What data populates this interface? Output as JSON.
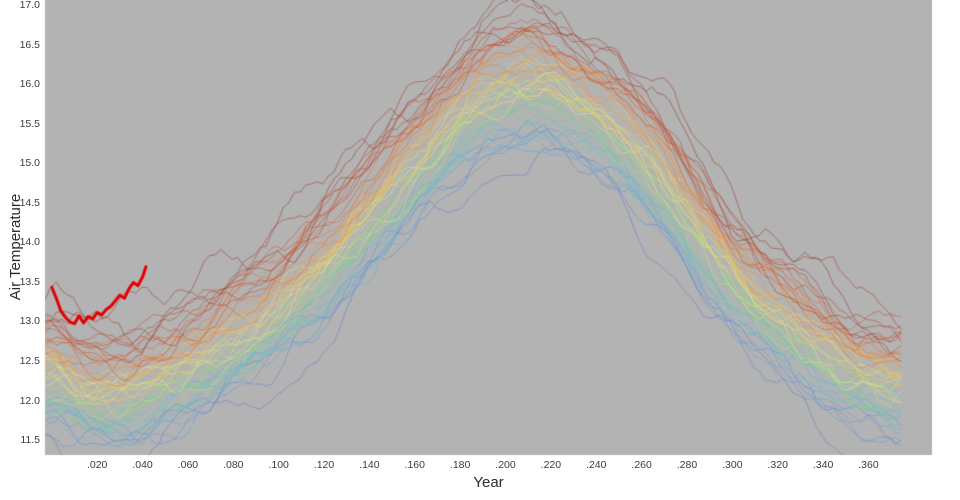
{
  "chart_data": {
    "type": "line",
    "title": "",
    "xlabel": "Year",
    "ylabel": "Air Temperature",
    "plot_background": "#b3b3b3",
    "tick_color": "#3c3c3c",
    "grid": false,
    "legend": "none",
    "xlim": [
      -0.003,
      0.388
    ],
    "ylim": [
      11.3,
      17.05
    ],
    "x_ticks": [
      {
        "v": 0.02,
        "label": ".020"
      },
      {
        "v": 0.04,
        "label": ".040"
      },
      {
        "v": 0.06,
        "label": ".060"
      },
      {
        "v": 0.08,
        "label": ".080"
      },
      {
        "v": 0.1,
        "label": ".100"
      },
      {
        "v": 0.12,
        "label": ".120"
      },
      {
        "v": 0.14,
        "label": ".140"
      },
      {
        "v": 0.16,
        "label": ".160"
      },
      {
        "v": 0.18,
        "label": ".180"
      },
      {
        "v": 0.2,
        "label": ".200"
      },
      {
        "v": 0.22,
        "label": ".220"
      },
      {
        "v": 0.24,
        "label": ".240"
      },
      {
        "v": 0.26,
        "label": ".260"
      },
      {
        "v": 0.28,
        "label": ".280"
      },
      {
        "v": 0.3,
        "label": ".300"
      },
      {
        "v": 0.32,
        "label": ".320"
      },
      {
        "v": 0.34,
        "label": ".340"
      },
      {
        "v": 0.36,
        "label": ".360"
      }
    ],
    "y_ticks": [
      {
        "v": 11.5,
        "label": "11.5"
      },
      {
        "v": 12.0,
        "label": "12.0"
      },
      {
        "v": 12.5,
        "label": "12.5"
      },
      {
        "v": 13.0,
        "label": "13.0"
      },
      {
        "v": 13.5,
        "label": "13.5"
      },
      {
        "v": 14.0,
        "label": "14.0"
      },
      {
        "v": 14.5,
        "label": "14.5"
      },
      {
        "v": 15.0,
        "label": "15.0"
      },
      {
        "v": 15.5,
        "label": "15.5"
      },
      {
        "v": 16.0,
        "label": "16.0"
      },
      {
        "v": 16.5,
        "label": "16.5"
      },
      {
        "v": 17.0,
        "label": "17.0"
      }
    ],
    "base_curve": {
      "x": [
        0.0,
        0.01,
        0.02,
        0.03,
        0.04,
        0.06,
        0.08,
        0.1,
        0.12,
        0.14,
        0.16,
        0.18,
        0.2,
        0.215,
        0.23,
        0.25,
        0.27,
        0.29,
        0.31,
        0.33,
        0.35,
        0.365,
        0.376
      ],
      "y": [
        12.2,
        12.05,
        11.98,
        12.0,
        12.08,
        12.3,
        12.65,
        13.1,
        13.6,
        14.2,
        14.85,
        15.45,
        15.8,
        15.85,
        15.7,
        15.25,
        14.6,
        13.85,
        13.2,
        12.7,
        12.3,
        12.15,
        12.1
      ]
    },
    "ensemble": {
      "count": 55,
      "seed": 7,
      "x_start": -0.003,
      "x_end": 0.376,
      "offset_range": [
        -0.55,
        0.8
      ],
      "noise_smooth": 0.16,
      "noise_jitter": 0.12,
      "alpha": 0.62,
      "line_width": 0.9,
      "palette": [
        "#5b7fd0",
        "#6aa8dd",
        "#62c6c9",
        "#7fcf8a",
        "#b4dc7e",
        "#ece97e",
        "#f4c95c",
        "#f29a45",
        "#e06a3b",
        "#c04a30",
        "#93382a"
      ]
    },
    "observed": {
      "color": "#e50000",
      "line_width": 3,
      "points": [
        [
          0.0,
          13.42
        ],
        [
          0.002,
          13.28
        ],
        [
          0.004,
          13.12
        ],
        [
          0.006,
          13.04
        ],
        [
          0.008,
          12.98
        ],
        [
          0.01,
          12.96
        ],
        [
          0.012,
          13.06
        ],
        [
          0.014,
          12.97
        ],
        [
          0.016,
          13.05
        ],
        [
          0.018,
          13.02
        ],
        [
          0.02,
          13.1
        ],
        [
          0.022,
          13.07
        ],
        [
          0.024,
          13.14
        ],
        [
          0.026,
          13.18
        ],
        [
          0.028,
          13.25
        ],
        [
          0.03,
          13.32
        ],
        [
          0.032,
          13.28
        ],
        [
          0.034,
          13.4
        ],
        [
          0.036,
          13.48
        ],
        [
          0.038,
          13.44
        ],
        [
          0.04,
          13.55
        ],
        [
          0.0415,
          13.68
        ]
      ]
    }
  }
}
